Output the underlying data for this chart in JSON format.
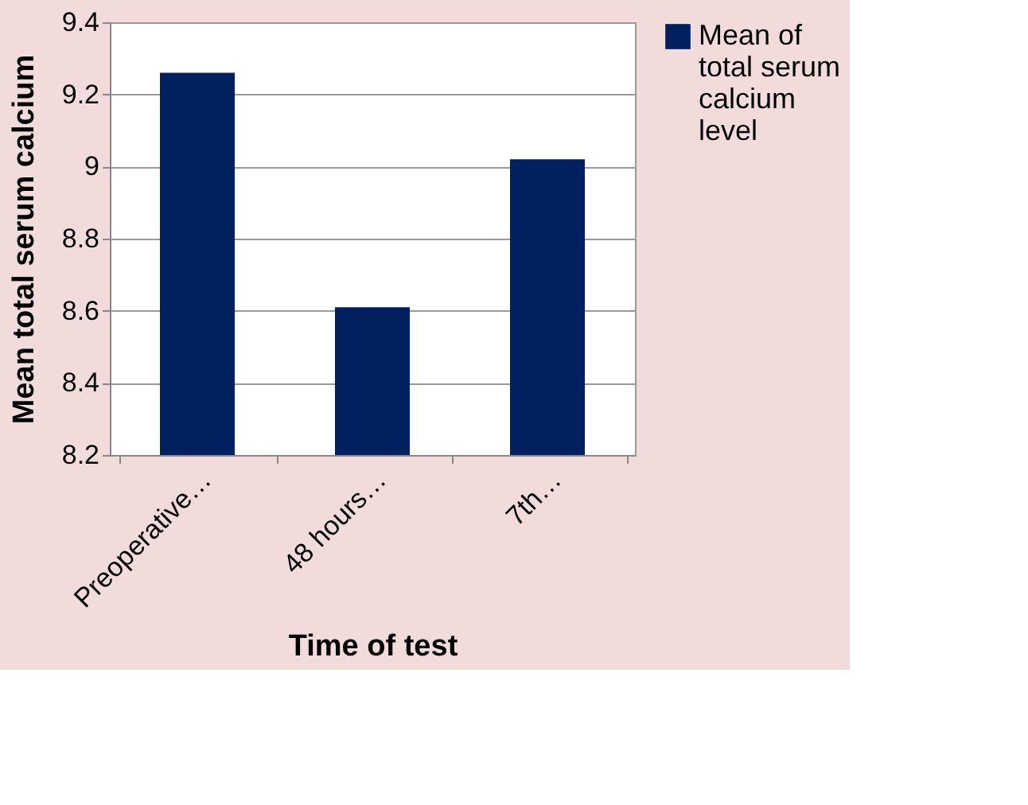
{
  "chart_data": {
    "type": "bar",
    "categories": [
      "Preoperative…",
      "48 hours…",
      "7th…"
    ],
    "series": [
      {
        "name": "Mean of total serum calcium level",
        "color": "#002060",
        "values": [
          9.26,
          8.61,
          9.02
        ]
      }
    ],
    "xlabel": "Time of test",
    "ylabel": "Mean total serum calcium",
    "ylim": [
      8.2,
      9.4
    ],
    "yticks": [
      8.2,
      8.4,
      8.6,
      8.8,
      9,
      9.2,
      9.4
    ],
    "grid": "y",
    "legend": "right"
  }
}
